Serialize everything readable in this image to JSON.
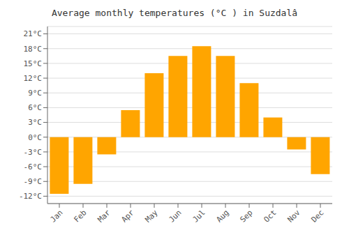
{
  "chart_data": {
    "type": "bar",
    "title": "Average monthly temperatures (°C ) in Suzdalâ",
    "categories": [
      "Jan",
      "Feb",
      "Mar",
      "Apr",
      "May",
      "Jun",
      "Jul",
      "Aug",
      "Sep",
      "Oct",
      "Nov",
      "Dec"
    ],
    "values": [
      -11.5,
      -9.5,
      -3.5,
      5.5,
      13.0,
      16.5,
      18.5,
      16.5,
      11.0,
      4.0,
      -2.5,
      -7.5
    ],
    "color": "#FFA500",
    "ylim": [
      -13.5,
      22.5
    ],
    "yticks": [
      {
        "value": -12,
        "label": "-12°C"
      },
      {
        "value": -9,
        "label": "-9°C"
      },
      {
        "value": -6,
        "label": "-6°C"
      },
      {
        "value": -3,
        "label": "-3°C"
      },
      {
        "value": 0,
        "label": "0°C"
      },
      {
        "value": 3,
        "label": "3°C"
      },
      {
        "value": 6,
        "label": "6°C"
      },
      {
        "value": 9,
        "label": "9°C"
      },
      {
        "value": 12,
        "label": "12°C"
      },
      {
        "value": 15,
        "label": "15°C"
      },
      {
        "value": 18,
        "label": "18°C"
      },
      {
        "value": 21,
        "label": "21°C"
      }
    ],
    "grid": true
  }
}
